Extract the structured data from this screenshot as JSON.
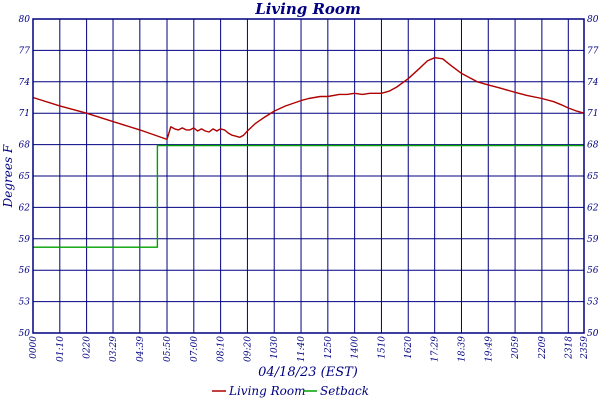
{
  "chart_data": {
    "type": "line",
    "title": "Living Room",
    "xlabel": "04/18/23 (EST)",
    "ylabel": "Degrees F",
    "ylim": [
      50,
      80
    ],
    "yticks": [
      50,
      53,
      56,
      59,
      62,
      65,
      68,
      71,
      74,
      77,
      80
    ],
    "ytick_labels": [
      "50",
      "53",
      "56",
      "59",
      "62",
      "65",
      "68",
      "71",
      "74",
      "77",
      "80"
    ],
    "xlim": [
      "00:00",
      "23:59"
    ],
    "xticks": [
      "00:00",
      "01:10",
      "02:20",
      "03:29",
      "04:39",
      "05:50",
      "07:00",
      "08:10",
      "09:20",
      "10:30",
      "11:40",
      "12:50",
      "14:00",
      "15:10",
      "16:20",
      "17:29",
      "18:39",
      "19:49",
      "20:59",
      "22:09",
      "23:18",
      "23:59"
    ],
    "xtick_labels": [
      "0000",
      "01:10",
      "0220",
      "03:29",
      "04:39",
      "05:50",
      "07:00",
      "08:10",
      "09:20",
      "1030",
      "11:40",
      "1250",
      "1400",
      "1510",
      "1620",
      "17:29",
      "18:39",
      "19:49",
      "2059",
      "2209",
      "2318",
      "2359"
    ],
    "grid": true,
    "legend_position": "bottom",
    "colors": {
      "axis": "#000080",
      "living_room": "#b00000",
      "setback": "#00a000"
    },
    "series": [
      {
        "name": "Living Room",
        "color": "#b00000",
        "x": [
          "00:00",
          "01:10",
          "02:20",
          "03:29",
          "04:39",
          "05:50",
          "06:00",
          "06:10",
          "06:20",
          "06:30",
          "06:40",
          "06:50",
          "07:00",
          "07:10",
          "07:20",
          "07:30",
          "07:40",
          "07:50",
          "08:00",
          "08:10",
          "08:20",
          "08:30",
          "08:40",
          "08:50",
          "09:00",
          "09:10",
          "09:20",
          "09:40",
          "10:00",
          "10:30",
          "11:00",
          "11:40",
          "12:00",
          "12:30",
          "12:50",
          "13:20",
          "13:40",
          "14:00",
          "14:20",
          "14:40",
          "15:00",
          "15:10",
          "15:30",
          "15:50",
          "16:20",
          "16:50",
          "17:10",
          "17:29",
          "17:50",
          "18:10",
          "18:39",
          "19:00",
          "19:20",
          "19:49",
          "20:20",
          "20:59",
          "21:30",
          "22:09",
          "22:40",
          "23:00",
          "23:18",
          "23:40",
          "23:59"
        ],
        "y": [
          72.5,
          71.7,
          71.0,
          70.2,
          69.4,
          68.5,
          69.7,
          69.5,
          69.4,
          69.6,
          69.4,
          69.4,
          69.6,
          69.3,
          69.5,
          69.3,
          69.2,
          69.5,
          69.3,
          69.5,
          69.4,
          69.1,
          68.9,
          68.8,
          68.7,
          68.9,
          69.3,
          70.0,
          70.5,
          71.2,
          71.7,
          72.2,
          72.4,
          72.6,
          72.6,
          72.8,
          72.8,
          72.9,
          72.8,
          72.9,
          72.9,
          72.9,
          73.1,
          73.5,
          74.3,
          75.3,
          76.0,
          76.3,
          76.2,
          75.6,
          74.8,
          74.4,
          74.0,
          73.7,
          73.4,
          73.0,
          72.7,
          72.4,
          72.1,
          71.8,
          71.5,
          71.2,
          71.0
        ]
      },
      {
        "name": "Setback",
        "color": "#00a000",
        "x": [
          "00:00",
          "05:25",
          "05:25",
          "23:59"
        ],
        "y": [
          58.2,
          58.2,
          67.9,
          67.9
        ]
      }
    ]
  }
}
